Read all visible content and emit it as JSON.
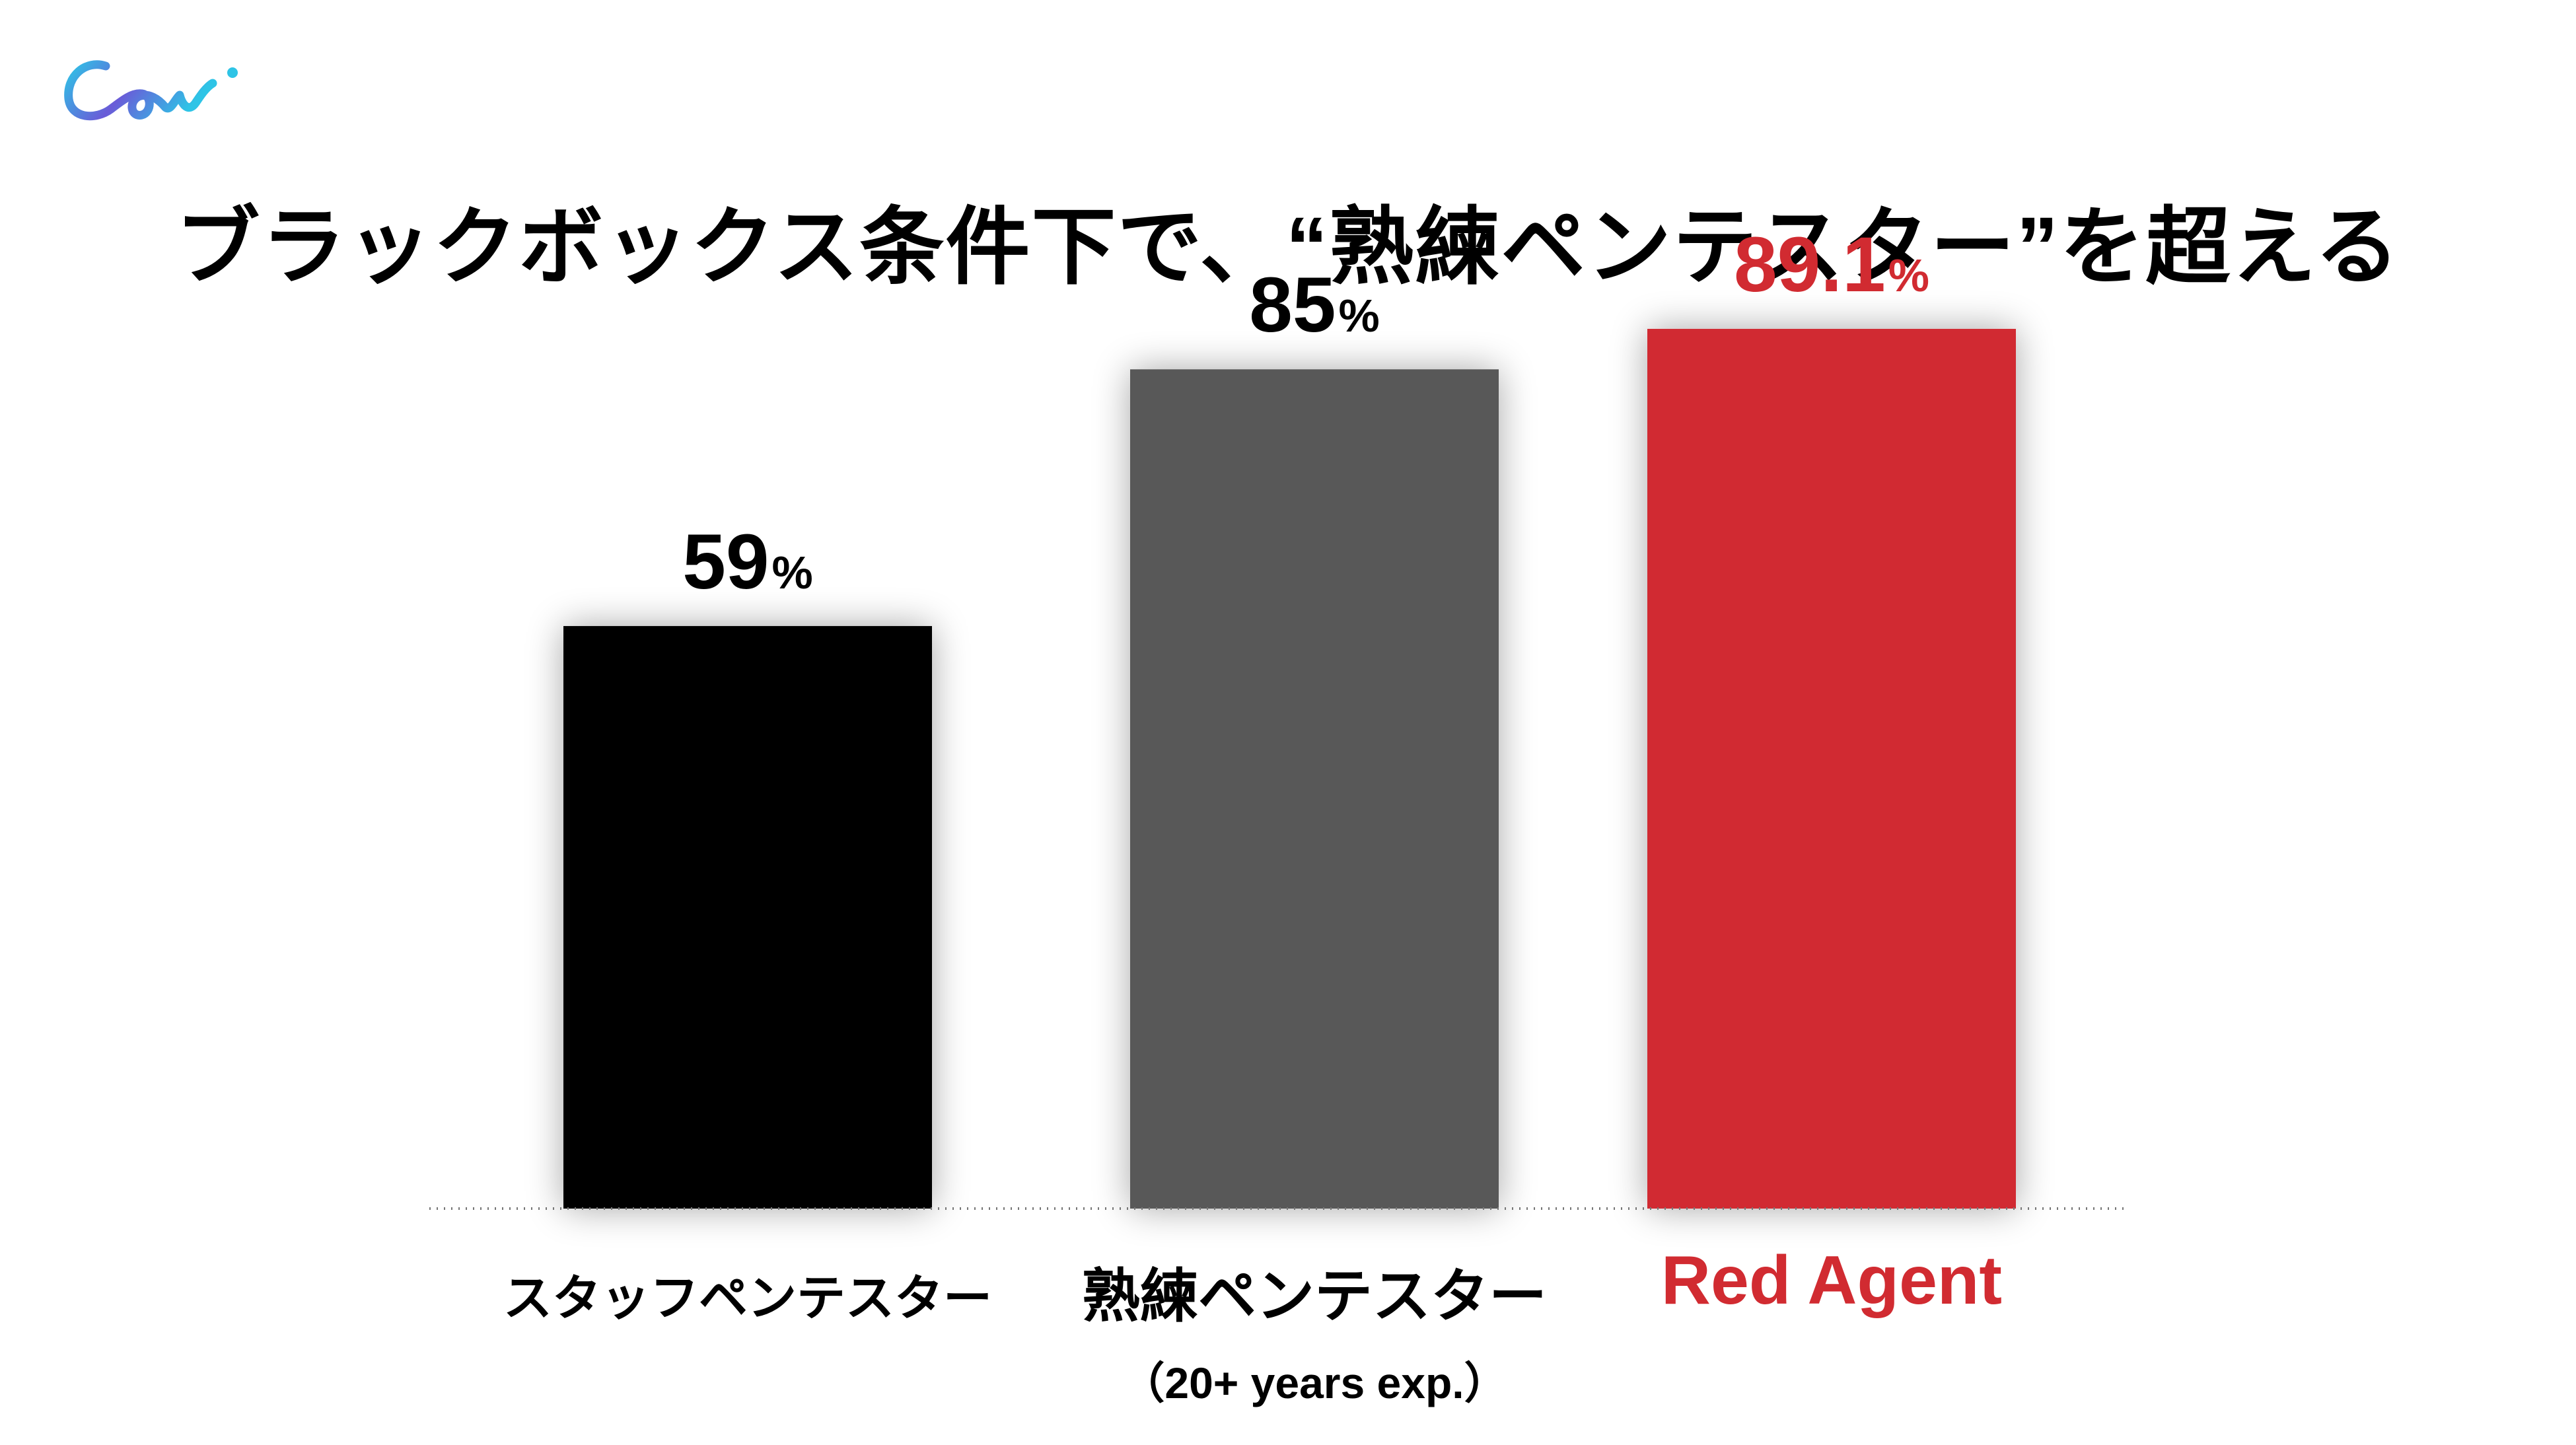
{
  "title": "ブラックボックス条件下で、“熟練ペンテスター”を超える",
  "logo": {
    "text": "Cow.",
    "icon": "brand-logo-script",
    "colors": [
      "#2ec4e6",
      "#6a5bd8",
      "#8e44c9"
    ]
  },
  "chart_data": {
    "type": "bar",
    "title": "ブラックボックス条件下で、“熟練ペンテスター”を超える",
    "unit": "%",
    "categories": [
      "スタッフペンテスター",
      "熟練ペンテスター",
      "Red Agent"
    ],
    "category_sublabels": [
      "",
      "（20+ years exp.）",
      ""
    ],
    "values": [
      59,
      85,
      89.1
    ],
    "value_labels": [
      "59",
      "85",
      "89.1"
    ],
    "colors": [
      "#000000",
      "#595959",
      "#d12b31"
    ],
    "label_colors": [
      "#000000",
      "#000000",
      "#d12b31"
    ],
    "ylim": [
      0,
      100
    ],
    "grid": false,
    "baseline": "dotted",
    "legend": "none"
  }
}
